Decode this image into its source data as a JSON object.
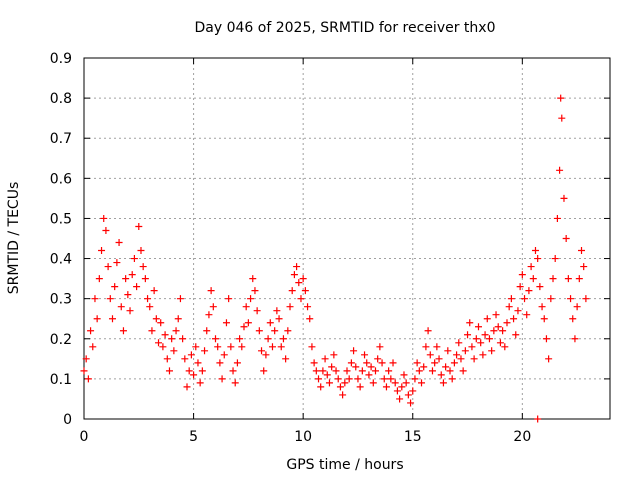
{
  "chart_data": {
    "type": "scatter",
    "title": "Day 046 of 2025, SRMTID for receiver thx0",
    "xlabel": "GPS time / hours",
    "ylabel": "SRMTID / TECUs",
    "xlim": [
      0,
      24
    ],
    "ylim": [
      0,
      0.9
    ],
    "xticks": [
      0,
      5,
      10,
      15,
      20
    ],
    "yticks": [
      0,
      0.1,
      0.2,
      0.3,
      0.4,
      0.5,
      0.6,
      0.7,
      0.8,
      0.9
    ],
    "xtick_labels": [
      "0",
      "5",
      "10",
      "15",
      "20"
    ],
    "ytick_labels": [
      "0",
      "0.1",
      "0.2",
      "0.3",
      "0.4",
      "0.5",
      "0.6",
      "0.7",
      "0.8",
      "0.9"
    ],
    "grid": true,
    "marker": "+",
    "color": "#ff0000",
    "series": [
      {
        "name": "SRMTID",
        "points": [
          [
            0.0,
            0.12
          ],
          [
            0.1,
            0.15
          ],
          [
            0.2,
            0.1
          ],
          [
            0.3,
            0.22
          ],
          [
            0.4,
            0.18
          ],
          [
            0.5,
            0.3
          ],
          [
            0.6,
            0.25
          ],
          [
            0.7,
            0.35
          ],
          [
            0.8,
            0.42
          ],
          [
            0.9,
            0.5
          ],
          [
            1.0,
            0.47
          ],
          [
            1.1,
            0.38
          ],
          [
            1.2,
            0.3
          ],
          [
            1.3,
            0.25
          ],
          [
            1.4,
            0.33
          ],
          [
            1.5,
            0.39
          ],
          [
            1.6,
            0.44
          ],
          [
            1.7,
            0.28
          ],
          [
            1.8,
            0.22
          ],
          [
            1.9,
            0.35
          ],
          [
            2.0,
            0.31
          ],
          [
            2.1,
            0.27
          ],
          [
            2.2,
            0.36
          ],
          [
            2.3,
            0.4
          ],
          [
            2.4,
            0.33
          ],
          [
            2.5,
            0.48
          ],
          [
            2.6,
            0.42
          ],
          [
            2.7,
            0.38
          ],
          [
            2.8,
            0.35
          ],
          [
            2.9,
            0.3
          ],
          [
            3.0,
            0.28
          ],
          [
            3.1,
            0.22
          ],
          [
            3.2,
            0.32
          ],
          [
            3.3,
            0.25
          ],
          [
            3.4,
            0.19
          ],
          [
            3.5,
            0.24
          ],
          [
            3.6,
            0.18
          ],
          [
            3.7,
            0.21
          ],
          [
            3.8,
            0.15
          ],
          [
            3.9,
            0.12
          ],
          [
            4.0,
            0.2
          ],
          [
            4.1,
            0.17
          ],
          [
            4.2,
            0.22
          ],
          [
            4.3,
            0.25
          ],
          [
            4.4,
            0.3
          ],
          [
            4.5,
            0.2
          ],
          [
            4.6,
            0.15
          ],
          [
            4.7,
            0.08
          ],
          [
            4.8,
            0.12
          ],
          [
            4.9,
            0.16
          ],
          [
            5.0,
            0.11
          ],
          [
            5.1,
            0.18
          ],
          [
            5.2,
            0.14
          ],
          [
            5.3,
            0.09
          ],
          [
            5.4,
            0.12
          ],
          [
            5.5,
            0.17
          ],
          [
            5.6,
            0.22
          ],
          [
            5.7,
            0.26
          ],
          [
            5.8,
            0.32
          ],
          [
            5.9,
            0.28
          ],
          [
            6.0,
            0.2
          ],
          [
            6.1,
            0.18
          ],
          [
            6.2,
            0.14
          ],
          [
            6.3,
            0.1
          ],
          [
            6.4,
            0.16
          ],
          [
            6.5,
            0.24
          ],
          [
            6.6,
            0.3
          ],
          [
            6.7,
            0.18
          ],
          [
            6.8,
            0.12
          ],
          [
            6.9,
            0.09
          ],
          [
            7.0,
            0.14
          ],
          [
            7.1,
            0.2
          ],
          [
            7.2,
            0.18
          ],
          [
            7.3,
            0.23
          ],
          [
            7.4,
            0.28
          ],
          [
            7.5,
            0.24
          ],
          [
            7.6,
            0.3
          ],
          [
            7.7,
            0.35
          ],
          [
            7.8,
            0.32
          ],
          [
            7.9,
            0.27
          ],
          [
            8.0,
            0.22
          ],
          [
            8.1,
            0.17
          ],
          [
            8.2,
            0.12
          ],
          [
            8.3,
            0.16
          ],
          [
            8.4,
            0.2
          ],
          [
            8.5,
            0.24
          ],
          [
            8.6,
            0.18
          ],
          [
            8.7,
            0.22
          ],
          [
            8.8,
            0.27
          ],
          [
            8.9,
            0.25
          ],
          [
            9.0,
            0.18
          ],
          [
            9.1,
            0.2
          ],
          [
            9.2,
            0.15
          ],
          [
            9.3,
            0.22
          ],
          [
            9.4,
            0.28
          ],
          [
            9.5,
            0.32
          ],
          [
            9.6,
            0.36
          ],
          [
            9.7,
            0.38
          ],
          [
            9.8,
            0.34
          ],
          [
            9.9,
            0.3
          ],
          [
            10.0,
            0.35
          ],
          [
            10.1,
            0.32
          ],
          [
            10.2,
            0.28
          ],
          [
            10.3,
            0.25
          ],
          [
            10.4,
            0.18
          ],
          [
            10.5,
            0.14
          ],
          [
            10.6,
            0.12
          ],
          [
            10.7,
            0.1
          ],
          [
            10.8,
            0.08
          ],
          [
            10.9,
            0.12
          ],
          [
            11.0,
            0.15
          ],
          [
            11.1,
            0.11
          ],
          [
            11.2,
            0.09
          ],
          [
            11.3,
            0.13
          ],
          [
            11.4,
            0.16
          ],
          [
            11.5,
            0.12
          ],
          [
            11.6,
            0.1
          ],
          [
            11.7,
            0.08
          ],
          [
            11.8,
            0.06
          ],
          [
            11.9,
            0.09
          ],
          [
            12.0,
            0.12
          ],
          [
            12.1,
            0.1
          ],
          [
            12.2,
            0.14
          ],
          [
            12.3,
            0.17
          ],
          [
            12.4,
            0.13
          ],
          [
            12.5,
            0.1
          ],
          [
            12.6,
            0.08
          ],
          [
            12.7,
            0.12
          ],
          [
            12.8,
            0.16
          ],
          [
            12.9,
            0.14
          ],
          [
            13.0,
            0.11
          ],
          [
            13.1,
            0.13
          ],
          [
            13.2,
            0.09
          ],
          [
            13.3,
            0.12
          ],
          [
            13.4,
            0.15
          ],
          [
            13.5,
            0.18
          ],
          [
            13.6,
            0.14
          ],
          [
            13.7,
            0.1
          ],
          [
            13.8,
            0.08
          ],
          [
            13.9,
            0.12
          ],
          [
            14.0,
            0.1
          ],
          [
            14.1,
            0.14
          ],
          [
            14.2,
            0.09
          ],
          [
            14.3,
            0.07
          ],
          [
            14.4,
            0.05
          ],
          [
            14.5,
            0.08
          ],
          [
            14.6,
            0.11
          ],
          [
            14.7,
            0.09
          ],
          [
            14.8,
            0.06
          ],
          [
            14.9,
            0.04
          ],
          [
            15.0,
            0.07
          ],
          [
            15.1,
            0.1
          ],
          [
            15.2,
            0.14
          ],
          [
            15.3,
            0.12
          ],
          [
            15.4,
            0.09
          ],
          [
            15.5,
            0.13
          ],
          [
            15.6,
            0.18
          ],
          [
            15.7,
            0.22
          ],
          [
            15.8,
            0.16
          ],
          [
            15.9,
            0.12
          ],
          [
            16.0,
            0.14
          ],
          [
            16.1,
            0.18
          ],
          [
            16.2,
            0.15
          ],
          [
            16.3,
            0.11
          ],
          [
            16.4,
            0.09
          ],
          [
            16.5,
            0.13
          ],
          [
            16.6,
            0.17
          ],
          [
            16.7,
            0.12
          ],
          [
            16.8,
            0.1
          ],
          [
            16.9,
            0.14
          ],
          [
            17.0,
            0.16
          ],
          [
            17.1,
            0.19
          ],
          [
            17.2,
            0.15
          ],
          [
            17.3,
            0.12
          ],
          [
            17.4,
            0.17
          ],
          [
            17.5,
            0.21
          ],
          [
            17.6,
            0.24
          ],
          [
            17.7,
            0.18
          ],
          [
            17.8,
            0.15
          ],
          [
            17.9,
            0.2
          ],
          [
            18.0,
            0.23
          ],
          [
            18.1,
            0.19
          ],
          [
            18.2,
            0.16
          ],
          [
            18.3,
            0.21
          ],
          [
            18.4,
            0.25
          ],
          [
            18.5,
            0.2
          ],
          [
            18.6,
            0.17
          ],
          [
            18.7,
            0.22
          ],
          [
            18.8,
            0.26
          ],
          [
            18.9,
            0.23
          ],
          [
            19.0,
            0.19
          ],
          [
            19.1,
            0.22
          ],
          [
            19.2,
            0.18
          ],
          [
            19.3,
            0.24
          ],
          [
            19.4,
            0.28
          ],
          [
            19.5,
            0.3
          ],
          [
            19.6,
            0.25
          ],
          [
            19.7,
            0.21
          ],
          [
            19.8,
            0.27
          ],
          [
            19.9,
            0.33
          ],
          [
            20.0,
            0.36
          ],
          [
            20.1,
            0.3
          ],
          [
            20.2,
            0.26
          ],
          [
            20.3,
            0.32
          ],
          [
            20.4,
            0.38
          ],
          [
            20.5,
            0.35
          ],
          [
            20.6,
            0.42
          ],
          [
            20.7,
            0.4
          ],
          [
            20.8,
            0.33
          ],
          [
            20.9,
            0.28
          ],
          [
            21.0,
            0.25
          ],
          [
            21.1,
            0.2
          ],
          [
            21.2,
            0.15
          ],
          [
            21.3,
            0.3
          ],
          [
            21.4,
            0.35
          ],
          [
            21.5,
            0.4
          ],
          [
            21.6,
            0.5
          ],
          [
            21.7,
            0.62
          ],
          [
            21.75,
            0.8
          ],
          [
            21.8,
            0.75
          ],
          [
            21.9,
            0.55
          ],
          [
            22.0,
            0.45
          ],
          [
            22.1,
            0.35
          ],
          [
            22.2,
            0.3
          ],
          [
            22.3,
            0.25
          ],
          [
            22.4,
            0.2
          ],
          [
            22.5,
            0.28
          ],
          [
            22.6,
            0.35
          ],
          [
            22.7,
            0.42
          ],
          [
            22.8,
            0.38
          ],
          [
            22.9,
            0.3
          ],
          [
            20.7,
            0.0
          ]
        ]
      }
    ]
  }
}
